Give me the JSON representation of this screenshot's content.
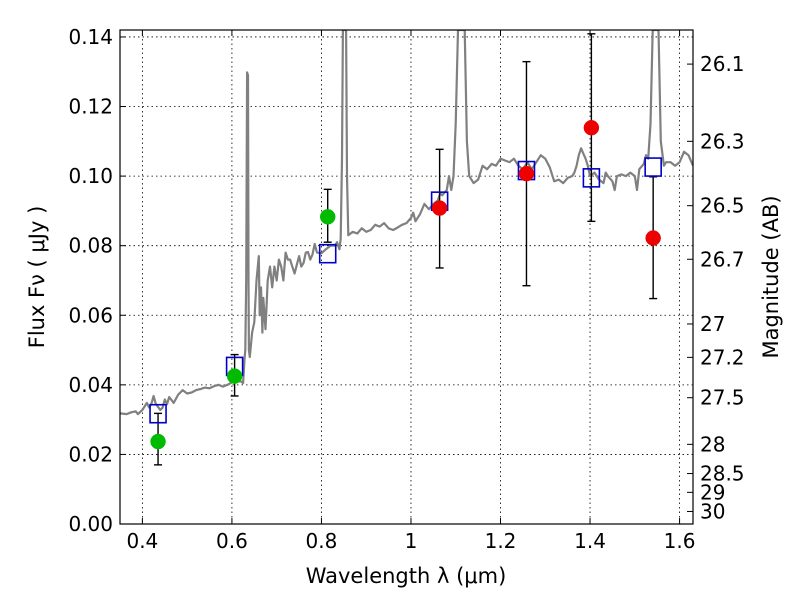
{
  "chart_data": {
    "type": "scatter",
    "xlabel": "Wavelength  λ (μm)",
    "ylabel": "Flux  Fν  ( μJy )",
    "ylabel_right": "Magnitude (AB)",
    "xlim": [
      0.35,
      1.63
    ],
    "ylim": [
      0.0,
      0.142
    ],
    "grid": true,
    "x_ticks": [
      0.4,
      0.6,
      0.8,
      1.0,
      1.2,
      1.4,
      1.6
    ],
    "x_tick_labels": [
      "0.4",
      "0.6",
      "0.8",
      "1",
      "1.2",
      "1.4",
      "1.6"
    ],
    "y_ticks": [
      0.0,
      0.02,
      0.04,
      0.06,
      0.08,
      0.1,
      0.12,
      0.14
    ],
    "y_tick_labels": [
      "0.00",
      "0.02",
      "0.04",
      "0.06",
      "0.08",
      "0.10",
      "0.12",
      "0.14"
    ],
    "right_ticks": [
      {
        "label": "26.1",
        "flux": 0.1322
      },
      {
        "label": "26.3",
        "flux": 0.11
      },
      {
        "label": "26.5",
        "flux": 0.0915
      },
      {
        "label": "26.7",
        "flux": 0.0761
      },
      {
        "label": "27",
        "flux": 0.0575
      },
      {
        "label": "27.2",
        "flux": 0.0479
      },
      {
        "label": "27.5",
        "flux": 0.0363
      },
      {
        "label": "28",
        "flux": 0.0229
      },
      {
        "label": "28.5",
        "flux": 0.0145
      },
      {
        "label": "29",
        "flux": 0.0091
      },
      {
        "label": "30",
        "flux": 0.0036
      }
    ],
    "model_spectrum": {
      "name": "SED model",
      "color": "#808080",
      "points": [
        [
          0.35,
          0.0318
        ],
        [
          0.365,
          0.0316
        ],
        [
          0.375,
          0.0321
        ],
        [
          0.385,
          0.0324
        ],
        [
          0.39,
          0.0316
        ],
        [
          0.4,
          0.0328
        ],
        [
          0.41,
          0.0348
        ],
        [
          0.415,
          0.0335
        ],
        [
          0.42,
          0.0345
        ],
        [
          0.425,
          0.0368
        ],
        [
          0.43,
          0.0345
        ],
        [
          0.44,
          0.0328
        ],
        [
          0.445,
          0.0334
        ],
        [
          0.45,
          0.0358
        ],
        [
          0.455,
          0.0344
        ],
        [
          0.46,
          0.0365
        ],
        [
          0.47,
          0.0348
        ],
        [
          0.48,
          0.0372
        ],
        [
          0.49,
          0.0385
        ],
        [
          0.5,
          0.0375
        ],
        [
          0.51,
          0.0378
        ],
        [
          0.52,
          0.0385
        ],
        [
          0.53,
          0.0388
        ],
        [
          0.54,
          0.0392
        ],
        [
          0.55,
          0.039
        ],
        [
          0.56,
          0.0396
        ],
        [
          0.57,
          0.04
        ],
        [
          0.58,
          0.0395
        ],
        [
          0.59,
          0.04
        ],
        [
          0.6,
          0.0407
        ],
        [
          0.61,
          0.041
        ],
        [
          0.62,
          0.041
        ],
        [
          0.625,
          0.0405
        ],
        [
          0.628,
          0.047
        ],
        [
          0.63,
          0.05
        ],
        [
          0.632,
          0.07
        ],
        [
          0.634,
          0.1298
        ],
        [
          0.636,
          0.129
        ],
        [
          0.637,
          0.07
        ],
        [
          0.638,
          0.05
        ],
        [
          0.64,
          0.048
        ],
        [
          0.645,
          0.055
        ],
        [
          0.65,
          0.058
        ],
        [
          0.655,
          0.07
        ],
        [
          0.66,
          0.077
        ],
        [
          0.662,
          0.06
        ],
        [
          0.665,
          0.068
        ],
        [
          0.668,
          0.055
        ],
        [
          0.67,
          0.065
        ],
        [
          0.675,
          0.056
        ],
        [
          0.68,
          0.07
        ],
        [
          0.685,
          0.074
        ],
        [
          0.69,
          0.068
        ],
        [
          0.695,
          0.074
        ],
        [
          0.7,
          0.07
        ],
        [
          0.705,
          0.076
        ],
        [
          0.71,
          0.074
        ],
        [
          0.715,
          0.07
        ],
        [
          0.72,
          0.078
        ],
        [
          0.725,
          0.076
        ],
        [
          0.73,
          0.076
        ],
        [
          0.735,
          0.074
        ],
        [
          0.74,
          0.072
        ],
        [
          0.745,
          0.0745
        ],
        [
          0.75,
          0.077
        ],
        [
          0.755,
          0.074
        ],
        [
          0.76,
          0.075
        ],
        [
          0.765,
          0.078
        ],
        [
          0.77,
          0.0782
        ],
        [
          0.775,
          0.076
        ],
        [
          0.78,
          0.0775
        ],
        [
          0.785,
          0.0805
        ],
        [
          0.79,
          0.078
        ],
        [
          0.8,
          0.0778
        ],
        [
          0.81,
          0.079
        ],
        [
          0.82,
          0.08
        ],
        [
          0.83,
          0.08
        ],
        [
          0.835,
          0.081
        ],
        [
          0.84,
          0.079
        ],
        [
          0.843,
          0.082
        ],
        [
          0.846,
          0.105
        ],
        [
          0.848,
          0.142
        ],
        [
          0.855,
          0.142
        ],
        [
          0.857,
          0.1
        ],
        [
          0.86,
          0.083
        ],
        [
          0.87,
          0.084
        ],
        [
          0.88,
          0.0835
        ],
        [
          0.89,
          0.085
        ],
        [
          0.9,
          0.084
        ],
        [
          0.91,
          0.0845
        ],
        [
          0.92,
          0.086
        ],
        [
          0.93,
          0.0855
        ],
        [
          0.94,
          0.0865
        ],
        [
          0.95,
          0.085
        ],
        [
          0.96,
          0.0845
        ],
        [
          0.97,
          0.0852
        ],
        [
          0.98,
          0.086
        ],
        [
          0.99,
          0.0865
        ],
        [
          1.0,
          0.088
        ],
        [
          1.005,
          0.0895
        ],
        [
          1.01,
          0.087
        ],
        [
          1.02,
          0.089
        ],
        [
          1.03,
          0.092
        ],
        [
          1.04,
          0.0905
        ],
        [
          1.05,
          0.092
        ],
        [
          1.06,
          0.093
        ],
        [
          1.065,
          0.095
        ],
        [
          1.07,
          0.0945
        ],
        [
          1.08,
          0.096
        ],
        [
          1.085,
          0.1
        ],
        [
          1.09,
          0.096
        ],
        [
          1.095,
          0.1
        ],
        [
          1.1,
          0.115
        ],
        [
          1.105,
          0.142
        ],
        [
          1.12,
          0.142
        ],
        [
          1.125,
          0.11
        ],
        [
          1.13,
          0.1
        ],
        [
          1.14,
          0.098
        ],
        [
          1.15,
          0.099
        ],
        [
          1.16,
          0.103
        ],
        [
          1.17,
          0.102
        ],
        [
          1.18,
          0.1035
        ],
        [
          1.19,
          0.103
        ],
        [
          1.2,
          0.105
        ],
        [
          1.21,
          0.1045
        ],
        [
          1.22,
          0.104
        ],
        [
          1.23,
          0.105
        ],
        [
          1.24,
          0.103
        ],
        [
          1.25,
          0.102
        ],
        [
          1.26,
          0.104
        ],
        [
          1.27,
          0.102
        ],
        [
          1.28,
          0.104
        ],
        [
          1.29,
          0.106
        ],
        [
          1.3,
          0.105
        ],
        [
          1.31,
          0.1025
        ],
        [
          1.32,
          0.0985
        ],
        [
          1.33,
          0.099
        ],
        [
          1.34,
          0.098
        ],
        [
          1.35,
          0.0995
        ],
        [
          1.36,
          0.1
        ],
        [
          1.365,
          0.101
        ],
        [
          1.37,
          0.103
        ],
        [
          1.375,
          0.106
        ],
        [
          1.38,
          0.108
        ],
        [
          1.385,
          0.1065
        ],
        [
          1.39,
          0.105
        ],
        [
          1.395,
          0.103
        ],
        [
          1.4,
          0.1
        ],
        [
          1.41,
          0.101
        ],
        [
          1.42,
          0.099
        ],
        [
          1.43,
          0.098
        ],
        [
          1.435,
          0.101
        ],
        [
          1.44,
          0.1
        ],
        [
          1.45,
          0.0985
        ],
        [
          1.455,
          0.096
        ],
        [
          1.46,
          0.1
        ],
        [
          1.47,
          0.1005
        ],
        [
          1.48,
          0.1
        ],
        [
          1.49,
          0.101
        ],
        [
          1.5,
          0.1
        ],
        [
          1.505,
          0.096
        ],
        [
          1.51,
          0.102
        ],
        [
          1.52,
          0.1035
        ],
        [
          1.525,
          0.106
        ],
        [
          1.53,
          0.105
        ],
        [
          1.535,
          0.115
        ],
        [
          1.54,
          0.142
        ],
        [
          1.553,
          0.142
        ],
        [
          1.558,
          0.11
        ],
        [
          1.565,
          0.103
        ],
        [
          1.57,
          0.104
        ],
        [
          1.58,
          0.104
        ],
        [
          1.59,
          0.103
        ],
        [
          1.6,
          0.104
        ],
        [
          1.61,
          0.107
        ],
        [
          1.62,
          0.106
        ],
        [
          1.63,
          0.103
        ]
      ]
    },
    "model_photometry": {
      "marker": "open-square",
      "color": "#0000cc",
      "points": [
        {
          "x": 0.435,
          "y": 0.0317
        },
        {
          "x": 0.606,
          "y": 0.0453
        },
        {
          "x": 0.814,
          "y": 0.0777
        },
        {
          "x": 1.064,
          "y": 0.0928
        },
        {
          "x": 1.258,
          "y": 0.1016
        },
        {
          "x": 1.403,
          "y": 0.0995
        },
        {
          "x": 1.541,
          "y": 0.1026
        }
      ]
    },
    "observed_photometry": [
      {
        "x": 0.435,
        "y": 0.0237,
        "yerr_low": 0.017,
        "yerr_high": 0.0318,
        "color": "#00bb00"
      },
      {
        "x": 0.606,
        "y": 0.0425,
        "yerr_low": 0.0368,
        "yerr_high": 0.0487,
        "color": "#00bb00"
      },
      {
        "x": 0.814,
        "y": 0.0883,
        "yerr_low": 0.081,
        "yerr_high": 0.0962,
        "color": "#00bb00"
      },
      {
        "x": 1.064,
        "y": 0.0908,
        "yerr_low": 0.0736,
        "yerr_high": 0.1077,
        "color": "#ee0000"
      },
      {
        "x": 1.258,
        "y": 0.1007,
        "yerr_low": 0.0685,
        "yerr_high": 0.1329,
        "color": "#ee0000"
      },
      {
        "x": 1.403,
        "y": 0.1139,
        "yerr_low": 0.087,
        "yerr_high": 0.1409,
        "color": "#ee0000"
      },
      {
        "x": 1.541,
        "y": 0.0822,
        "yerr_low": 0.0648,
        "yerr_high": 0.0998,
        "color": "#ee0000"
      }
    ]
  }
}
